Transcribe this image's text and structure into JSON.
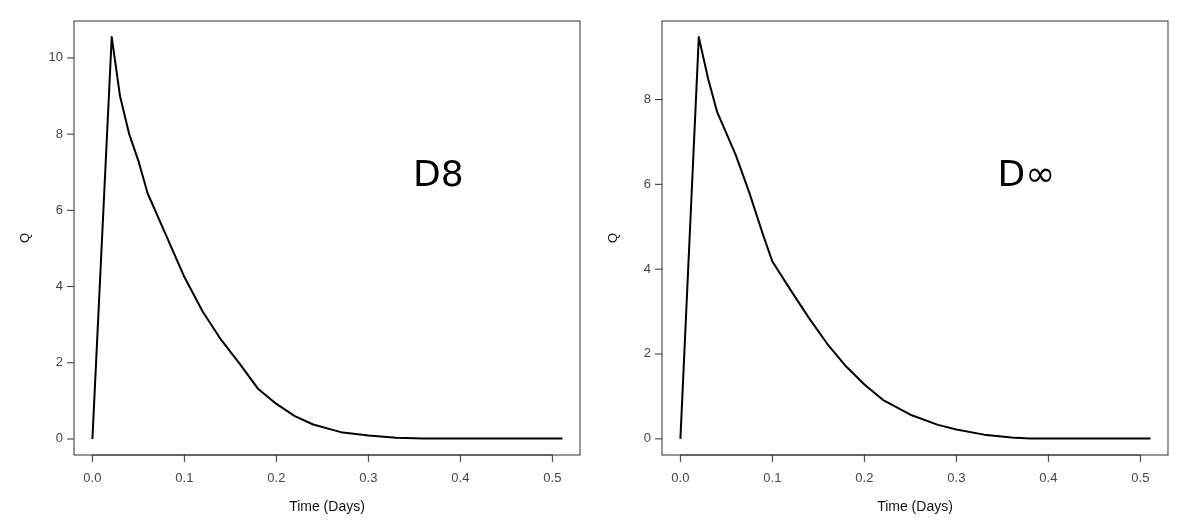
{
  "chart_data": [
    {
      "type": "line",
      "xlabel": "Time (Days)",
      "ylabel": "Q",
      "annotations": [
        "D8"
      ],
      "xlim": [
        -0.02,
        0.53
      ],
      "ylim": [
        -0.42,
        10.97
      ],
      "xticks": [
        {
          "value": 0,
          "label": "0.0"
        },
        0.1,
        0.2,
        0.3,
        0.4,
        0.5
      ],
      "yticks": [
        0,
        2,
        4,
        6,
        8,
        10
      ],
      "series": [
        {
          "color": "#000000",
          "x": [
            0,
            0.021,
            0.03,
            0.04,
            0.05,
            0.06,
            0.08,
            0.1,
            0.12,
            0.14,
            0.16,
            0.18,
            0.2,
            0.22,
            0.24,
            0.27,
            0.3,
            0.33,
            0.36,
            0.4,
            0.45,
            0.511
          ],
          "values": [
            0,
            10.55,
            9.0,
            8.0,
            7.3,
            6.45,
            5.35,
            4.25,
            3.34,
            2.6,
            1.98,
            1.32,
            0.92,
            0.6,
            0.38,
            0.18,
            0.09,
            0.03,
            0.01,
            0.01,
            0.01,
            0.01
          ]
        }
      ]
    },
    {
      "type": "line",
      "xlabel": "Time (Days)",
      "ylabel": "Q",
      "annotations": [
        "D∞"
      ],
      "xlim": [
        -0.02,
        0.53
      ],
      "ylim": [
        -0.38,
        9.85
      ],
      "xticks": [
        {
          "value": 0,
          "label": "0.0"
        },
        0.1,
        0.2,
        0.3,
        0.4,
        0.5
      ],
      "yticks": [
        0,
        2,
        4,
        6,
        8
      ],
      "series": [
        {
          "color": "#000000",
          "x": [
            0,
            0.02,
            0.03,
            0.04,
            0.06,
            0.075,
            0.09,
            0.1,
            0.12,
            0.14,
            0.16,
            0.18,
            0.2,
            0.22,
            0.25,
            0.28,
            0.3,
            0.33,
            0.36,
            0.38,
            0.45,
            0.511
          ],
          "values": [
            0,
            9.47,
            8.5,
            7.7,
            6.7,
            5.8,
            4.8,
            4.18,
            3.5,
            2.84,
            2.23,
            1.71,
            1.28,
            0.92,
            0.57,
            0.33,
            0.22,
            0.1,
            0.03,
            0.01,
            0.01,
            0.01
          ]
        }
      ]
    }
  ]
}
